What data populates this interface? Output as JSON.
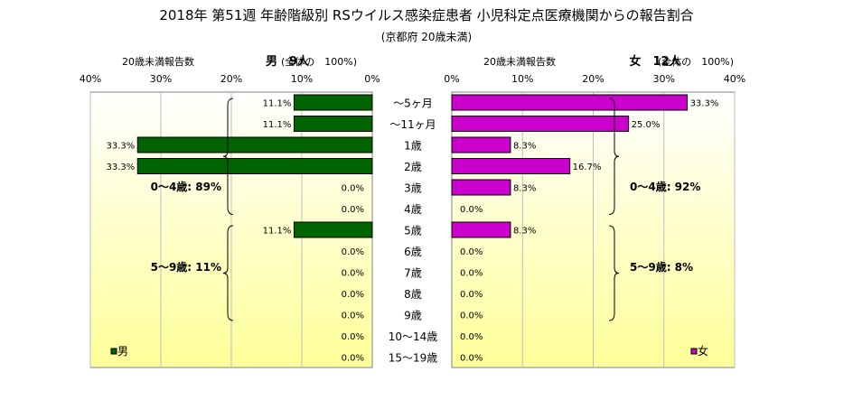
{
  "chart_data": {
    "type": "bar",
    "title": "2018年 第51週 年齢階級別 RSウイルス感染症患者 小児科定点医療機関からの報告割合",
    "subtitle": "(京都府 20歳未満)",
    "categories": [
      "～5ヶ月",
      "～11ヶ月",
      "1歳",
      "2歳",
      "3歳",
      "4歳",
      "5歳",
      "6歳",
      "7歳",
      "8歳",
      "9歳",
      "10～14歳",
      "15～19歳"
    ],
    "xlim": [
      0,
      40
    ],
    "xticks": [
      "0%",
      "10%",
      "20%",
      "30%",
      "40%"
    ],
    "grid": true,
    "series": [
      {
        "name": "男",
        "header_label": "20歳未満報告数",
        "header_count": "男　9人",
        "header_note": "(全体の　100%)",
        "color": "#006400",
        "values": [
          11.1,
          11.1,
          33.3,
          33.3,
          0.0,
          0.0,
          11.1,
          0.0,
          0.0,
          0.0,
          0.0,
          0.0,
          0.0
        ],
        "value_labels": [
          "11.1%",
          "11.1%",
          "33.3%",
          "33.3%",
          "0.0%",
          "0.0%",
          "11.1%",
          "0.0%",
          "0.0%",
          "0.0%",
          "0.0%",
          "0.0%",
          "0.0%"
        ],
        "groups": [
          {
            "label": "0～4歳: 89%",
            "from": 0,
            "to": 5
          },
          {
            "label": "5～9歳: 11%",
            "from": 6,
            "to": 10
          }
        ],
        "legend": "男",
        "legend_position": "bottom-left"
      },
      {
        "name": "女",
        "header_label": "20歳未満報告数",
        "header_count": "女　12人",
        "header_note": "(全体の　100%)",
        "color": "#cc00cc",
        "values": [
          33.3,
          25.0,
          8.3,
          16.7,
          8.3,
          0.0,
          8.3,
          0.0,
          0.0,
          0.0,
          0.0,
          0.0,
          0.0
        ],
        "value_labels": [
          "33.3%",
          "25.0%",
          "8.3%",
          "16.7%",
          "8.3%",
          "0.0%",
          "8.3%",
          "0.0%",
          "0.0%",
          "0.0%",
          "0.0%",
          "0.0%",
          "0.0%"
        ],
        "groups": [
          {
            "label": "0～4歳: 92%",
            "from": 0,
            "to": 5
          },
          {
            "label": "5～9歳: 8%",
            "from": 6,
            "to": 10
          }
        ],
        "legend": "女",
        "legend_position": "bottom-right"
      }
    ]
  }
}
